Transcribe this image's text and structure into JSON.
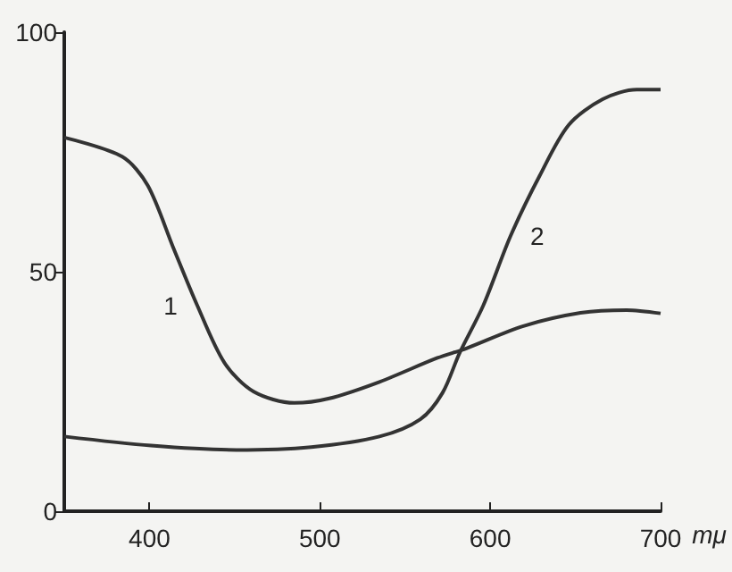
{
  "chart_data": {
    "type": "line",
    "xlabel": "mμ",
    "x": [
      350,
      384,
      399,
      414,
      428,
      444,
      461,
      485,
      505,
      535,
      569,
      586,
      619,
      653,
      680,
      700
    ],
    "series": [
      {
        "name": "1",
        "color": "#333333",
        "values": [
          78,
          74,
          68,
          55,
          43,
          31,
          25,
          22.6,
          23.5,
          27,
          32,
          34,
          38.6,
          41.4,
          42,
          41.3
        ]
      },
      {
        "name": "2",
        "color": "#333333",
        "x": [
          350,
          401,
          451,
          495,
          535,
          559,
          572,
          582,
          596,
          612,
          629,
          646,
          666,
          686,
          700
        ],
        "values": [
          15.6,
          13.7,
          12.8,
          13.4,
          15.6,
          19.2,
          24.7,
          33,
          43,
          57.5,
          70,
          80.6,
          86,
          88,
          88
        ]
      }
    ],
    "xlim": [
      350,
      700
    ],
    "xticks": [
      400,
      500,
      600,
      700
    ],
    "ylim": [
      0,
      100
    ],
    "yticks": [
      0,
      50,
      100
    ],
    "grid": false,
    "marker": "none",
    "line_style": "solid"
  }
}
